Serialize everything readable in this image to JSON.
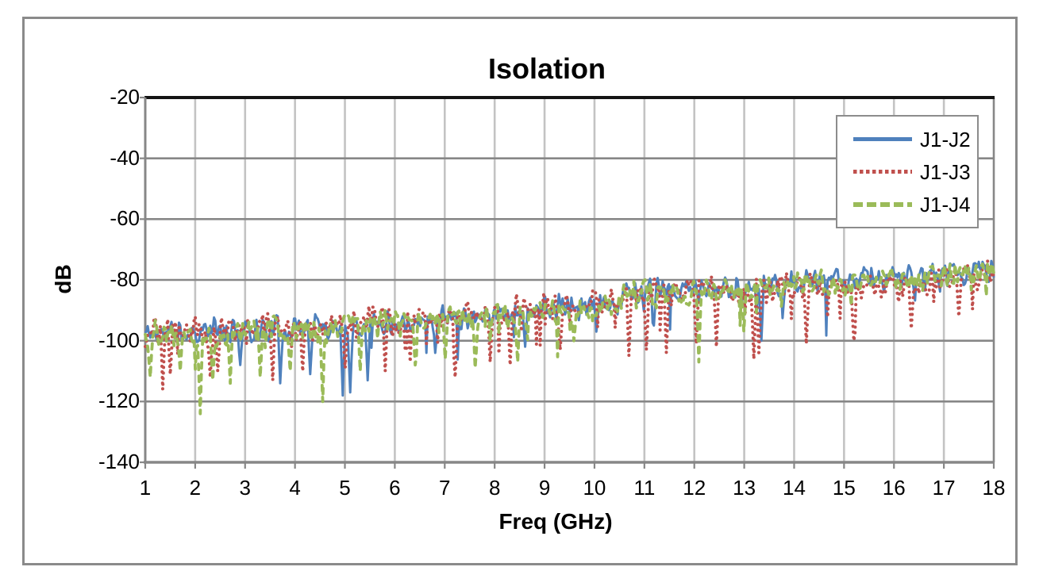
{
  "title": "Isolation",
  "axes": {
    "x_title": "Freq (GHz)",
    "y_title": "dB"
  },
  "colors": {
    "series_blue": "#4F81BD",
    "series_red": "#C0504D",
    "series_green": "#9BBB59",
    "h_gridline": "#878787",
    "v_gridline": "#C3C3C3",
    "axis_line": "#878787",
    "plot_top_border": "#141414",
    "outer_border": "#8A8A8A",
    "text": "#000000",
    "background": "#FFFFFF"
  },
  "chart_data": {
    "type": "line",
    "title": "Isolation",
    "xlabel": "Freq (GHz)",
    "ylabel": "dB",
    "xlim": [
      1,
      18
    ],
    "ylim": [
      -140,
      -20
    ],
    "xticks": [
      1,
      2,
      3,
      4,
      5,
      6,
      7,
      8,
      9,
      10,
      11,
      12,
      13,
      14,
      15,
      16,
      17,
      18
    ],
    "yticks": [
      -20,
      -40,
      -60,
      -80,
      -100,
      -120,
      -140
    ],
    "grid": true,
    "legend_position": "top-right",
    "n_points": 680,
    "trend": {
      "x": [
        1,
        2,
        3,
        4,
        5,
        6,
        7,
        8,
        9,
        10,
        10.45,
        10.6,
        11,
        12,
        13,
        14,
        15,
        16,
        17,
        18
      ],
      "y": [
        -97.5,
        -97,
        -96.5,
        -95.5,
        -95,
        -93.5,
        -92.5,
        -91,
        -89.5,
        -88.5,
        -88,
        -84,
        -83.5,
        -83.5,
        -83,
        -81.5,
        -80.5,
        -79.5,
        -78,
        -76.5
      ]
    },
    "series": [
      {
        "name": "J1-J2",
        "color": "#4F81BD",
        "style": "solid",
        "seed": 11,
        "offset": 0,
        "tilt": 0,
        "noise_db": 4.2,
        "dip_prob": 0.05,
        "dip_max": 18,
        "spikes": [
          [
            2.9,
            -108
          ],
          [
            3.7,
            -114
          ],
          [
            4.3,
            -111
          ],
          [
            4.95,
            -118
          ],
          [
            5.1,
            -117
          ],
          [
            5.45,
            -113
          ],
          [
            6.8,
            -104
          ],
          [
            8.6,
            -102
          ],
          [
            10.05,
            -97
          ],
          [
            11.2,
            -95
          ],
          [
            13.35,
            -100
          ]
        ]
      },
      {
        "name": "J1-J3",
        "color": "#C0504D",
        "style": "dotted",
        "seed": 23,
        "offset": 0.5,
        "tilt": -2.5,
        "noise_db": 4.6,
        "dip_prob": 0.1,
        "dip_max": 14,
        "spikes": [
          [
            1.35,
            -116
          ],
          [
            1.5,
            -111
          ],
          [
            2.3,
            -112
          ],
          [
            2.45,
            -110
          ],
          [
            3.55,
            -113
          ],
          [
            4.15,
            -110
          ],
          [
            5.0,
            -109
          ],
          [
            5.8,
            -110
          ],
          [
            6.3,
            -107
          ],
          [
            7.2,
            -112
          ],
          [
            7.9,
            -107
          ],
          [
            8.3,
            -108
          ],
          [
            9.3,
            -103
          ],
          [
            10.7,
            -105
          ],
          [
            11.05,
            -103
          ],
          [
            11.45,
            -104
          ],
          [
            12.05,
            -101
          ],
          [
            12.45,
            -102
          ],
          [
            13.2,
            -106
          ],
          [
            13.3,
            -104
          ],
          [
            14.25,
            -101
          ],
          [
            15.2,
            -100
          ],
          [
            16.35,
            -96
          ],
          [
            17.3,
            -92
          ]
        ]
      },
      {
        "name": "J1-J4",
        "color": "#9BBB59",
        "style": "dashed",
        "seed": 37,
        "offset": -0.5,
        "tilt": 0,
        "noise_db": 4.4,
        "dip_prob": 0.07,
        "dip_max": 16,
        "spikes": [
          [
            1.1,
            -112
          ],
          [
            1.7,
            -110
          ],
          [
            2.1,
            -124
          ],
          [
            2.35,
            -113
          ],
          [
            2.7,
            -114
          ],
          [
            3.3,
            -112
          ],
          [
            3.9,
            -110
          ],
          [
            4.55,
            -120
          ],
          [
            5.3,
            -110
          ],
          [
            6.4,
            -108
          ],
          [
            7.0,
            -106
          ],
          [
            7.6,
            -109
          ],
          [
            8.45,
            -107
          ],
          [
            9.6,
            -100
          ],
          [
            12.1,
            -107
          ],
          [
            13.0,
            -97
          ]
        ]
      }
    ]
  }
}
